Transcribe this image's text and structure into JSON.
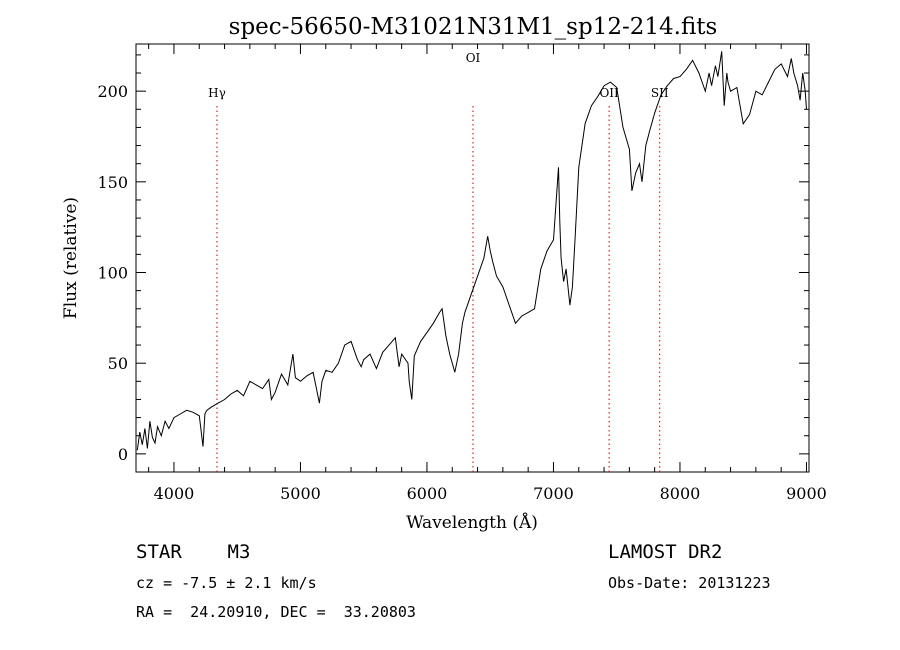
{
  "chart_data": {
    "type": "line",
    "title": "spec-56650-M31021N31M1_sp12-214.fits",
    "xlabel": "Wavelength (Å)",
    "ylabel": "Flux (relative)",
    "xlim": [
      3700,
      9020
    ],
    "ylim": [
      -10,
      226
    ],
    "xticks": [
      4000,
      5000,
      6000,
      7000,
      8000,
      9000
    ],
    "yticks": [
      0,
      50,
      100,
      150,
      200
    ],
    "grid": false,
    "line_color": "#000000",
    "marker_color": "#cc0000",
    "lines": [
      {
        "name": "Hγ",
        "x": 4340
      },
      {
        "name": "OI",
        "x": 6364
      },
      {
        "name": "OII",
        "x": 7440
      },
      {
        "name": "SII",
        "x": 7840
      }
    ],
    "series": [
      {
        "x": [
          3710,
          3730,
          3750,
          3770,
          3790,
          3810,
          3830,
          3850,
          3870,
          3900,
          3930,
          3960,
          4000,
          4050,
          4100,
          4150,
          4200,
          4230,
          4245,
          4260,
          4300,
          4350,
          4400,
          4450,
          4500,
          4550,
          4600,
          4650,
          4700,
          4750,
          4770,
          4800,
          4850,
          4900,
          4940,
          4960,
          5000,
          5050,
          5100,
          5150,
          5170,
          5200,
          5250,
          5300,
          5350,
          5400,
          5450,
          5480,
          5500,
          5550,
          5600,
          5650,
          5700,
          5750,
          5780,
          5800,
          5850,
          5860,
          5880,
          5900,
          5950,
          6000,
          6050,
          6100,
          6120,
          6150,
          6180,
          6200,
          6220,
          6250,
          6280,
          6300,
          6350,
          6400,
          6450,
          6480,
          6500,
          6520,
          6550,
          6600,
          6650,
          6700,
          6750,
          6800,
          6850,
          6900,
          6950,
          7000,
          7040,
          7050,
          7060,
          7080,
          7100,
          7130,
          7150,
          7170,
          7200,
          7250,
          7300,
          7350,
          7400,
          7450,
          7500,
          7550,
          7600,
          7620,
          7650,
          7680,
          7700,
          7730,
          7760,
          7800,
          7850,
          7900,
          7950,
          8000,
          8050,
          8100,
          8150,
          8200,
          8230,
          8250,
          8280,
          8300,
          8330,
          8350,
          8370,
          8380,
          8400,
          8450,
          8500,
          8550,
          8600,
          8650,
          8700,
          8750,
          8800,
          8850,
          8880,
          8900,
          8930,
          8950,
          8970,
          8990,
          9000
        ],
        "values": [
          2,
          12,
          5,
          14,
          3,
          18,
          9,
          6,
          15,
          10,
          18,
          14,
          20,
          22,
          24,
          23,
          21,
          4,
          22,
          24,
          26,
          28,
          30,
          33,
          35,
          32,
          40,
          38,
          36,
          41,
          30,
          34,
          44,
          38,
          55,
          42,
          40,
          43,
          45,
          28,
          40,
          46,
          45,
          50,
          60,
          62,
          52,
          48,
          52,
          55,
          47,
          56,
          60,
          64,
          48,
          55,
          50,
          40,
          30,
          54,
          62,
          67,
          72,
          78,
          80,
          65,
          55,
          50,
          45,
          55,
          72,
          78,
          88,
          98,
          108,
          120,
          112,
          106,
          98,
          92,
          82,
          72,
          76,
          78,
          80,
          102,
          112,
          118,
          158,
          128,
          108,
          95,
          102,
          82,
          92,
          118,
          158,
          182,
          192,
          197,
          203,
          205,
          202,
          180,
          168,
          145,
          155,
          160,
          150,
          170,
          178,
          188,
          198,
          203,
          207,
          208,
          212,
          217,
          210,
          200,
          210,
          203,
          214,
          208,
          222,
          192,
          210,
          205,
          200,
          202,
          182,
          187,
          200,
          198,
          205,
          212,
          215,
          208,
          218,
          210,
          203,
          195,
          210,
          200,
          190
        ]
      }
    ]
  },
  "info": {
    "object": "STAR    M3",
    "cz": "cz = -7.5 ± 2.1 km/s",
    "radec": "RA =  24.20910, DEC =  33.20803",
    "survey": "LAMOST DR2",
    "obsdate": "Obs-Date: 20131223"
  }
}
